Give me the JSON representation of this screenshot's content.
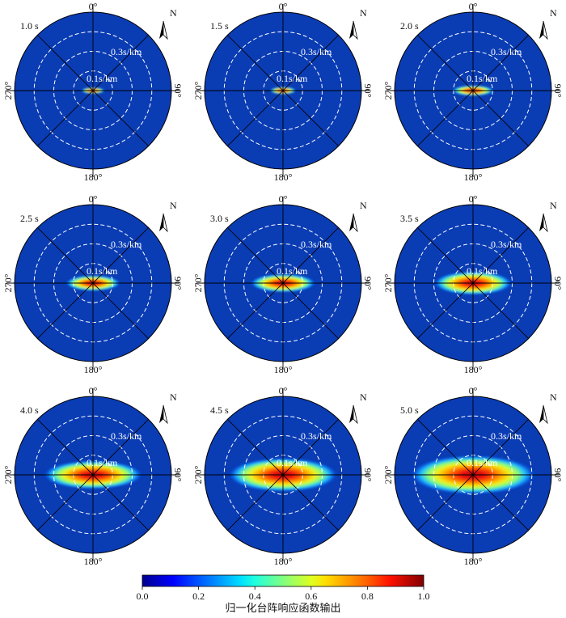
{
  "chart_data": {
    "type": "heatmap",
    "subtype": "polar-array-response",
    "panels": [
      {
        "period": "1.0 s",
        "peak_halfwidth_x": 0.045,
        "peak_halfwidth_y": 0.012
      },
      {
        "period": "1.5 s",
        "peak_halfwidth_x": 0.05,
        "peak_halfwidth_y": 0.014
      },
      {
        "period": "2.0 s",
        "peak_halfwidth_x": 0.08,
        "peak_halfwidth_y": 0.02
      },
      {
        "period": "2.5 s",
        "peak_halfwidth_x": 0.105,
        "peak_halfwidth_y": 0.03
      },
      {
        "period": "3.0 s",
        "peak_halfwidth_x": 0.125,
        "peak_halfwidth_y": 0.035
      },
      {
        "period": "3.5 s",
        "peak_halfwidth_x": 0.15,
        "peak_halfwidth_y": 0.045
      },
      {
        "period": "4.0 s",
        "peak_halfwidth_x": 0.19,
        "peak_halfwidth_y": 0.055
      },
      {
        "period": "4.5 s",
        "peak_halfwidth_x": 0.21,
        "peak_halfwidth_y": 0.065
      },
      {
        "period": "5.0 s",
        "peak_halfwidth_x": 0.24,
        "peak_halfwidth_y": 0.075
      }
    ],
    "azimuth_labels": {
      "top": "0°",
      "right": "90°",
      "bottom": "180°",
      "left": "270°"
    },
    "slowness_rings": [
      0.1,
      0.2,
      0.3
    ],
    "max_slowness": 0.4,
    "ring_labels": [
      {
        "value": 0.1,
        "text": "0.1s/km"
      },
      {
        "value": 0.3,
        "text": "0.3s/km"
      }
    ],
    "north_label": "N",
    "colorbar": {
      "title": "归一化台阵响应函数输出",
      "ticks": [
        "0.0",
        "0.2",
        "0.4",
        "0.6",
        "0.8",
        "1.0"
      ],
      "range": [
        0,
        1
      ],
      "colormap": "jet"
    }
  }
}
